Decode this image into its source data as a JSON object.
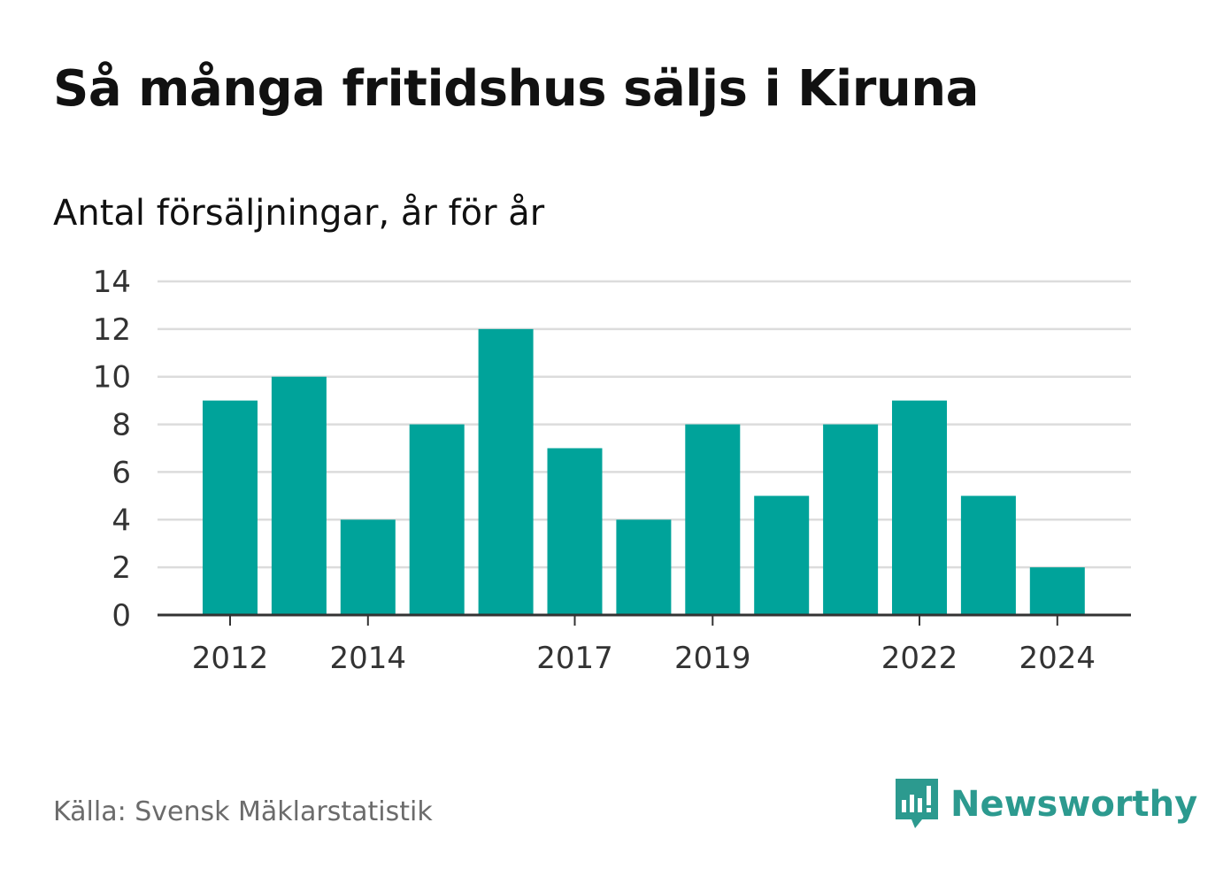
{
  "title": "Så många fritidshus säljs i Kiruna",
  "subtitle": "Antal försäljningar, år för år",
  "source": "Källa: Svensk Mäklarstatistik",
  "brand": {
    "name": "Newsworthy",
    "icon": "newsworthy-logo-icon",
    "color": "#2c9a8f"
  },
  "chart_data": {
    "type": "bar",
    "categories": [
      "2012",
      "2013",
      "2014",
      "2015",
      "2016",
      "2017",
      "2018",
      "2019",
      "2020",
      "2021",
      "2022",
      "2023",
      "2024"
    ],
    "values": [
      9,
      10,
      4,
      8,
      12,
      7,
      4,
      8,
      5,
      8,
      9,
      5,
      2
    ],
    "x_tick_labels": [
      "2012",
      "2014",
      "2017",
      "2019",
      "2022",
      "2024"
    ],
    "y_ticks": [
      0,
      2,
      4,
      6,
      8,
      10,
      12,
      14
    ],
    "ylim": [
      0,
      14
    ],
    "xlabel": "",
    "ylabel": "",
    "grid": true,
    "bar_color": "#00a39a"
  }
}
